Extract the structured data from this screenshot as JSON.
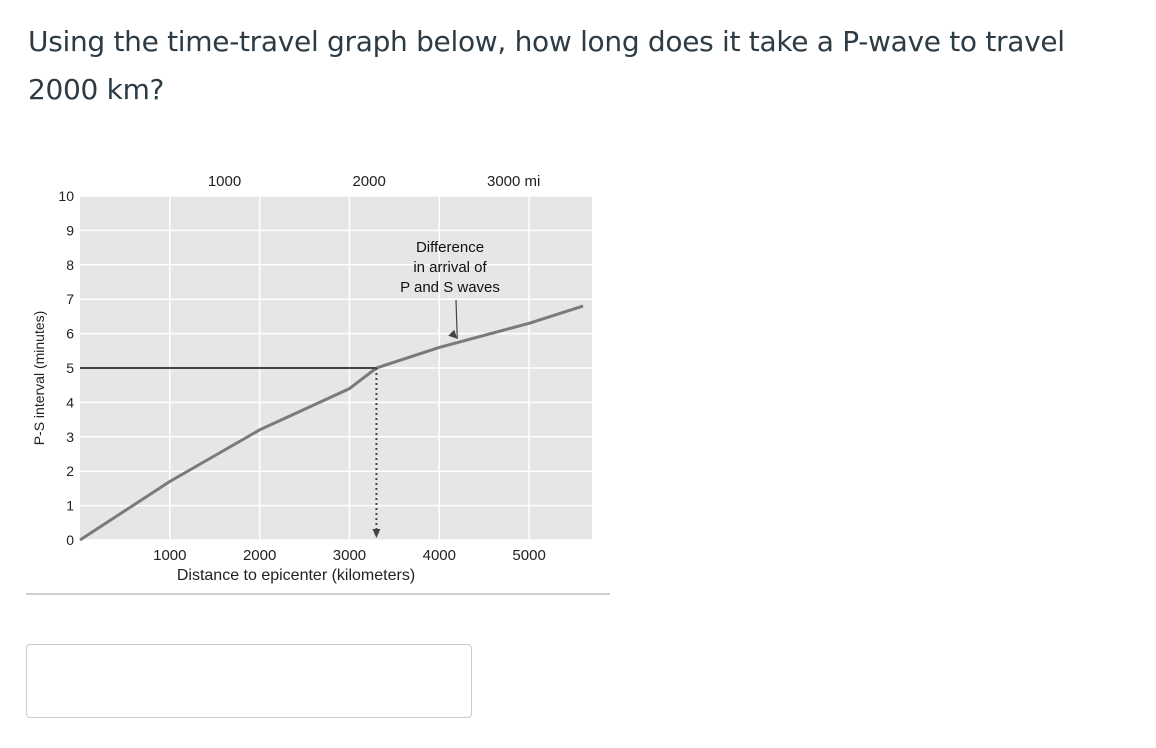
{
  "question": {
    "text": "Using the time-travel graph below, how long does it take a P-wave to travel 2000 km?"
  },
  "answer": {
    "value": "",
    "placeholder": ""
  },
  "colors": {
    "chart_background": "#e6e6e6",
    "grid": "#ffffff",
    "curve": "#7a7a7a",
    "reference_line": "#444444",
    "text": "#2d3b45"
  },
  "chart_data": {
    "type": "line",
    "title": "",
    "xlabel": "Distance to epicenter (kilometers)",
    "ylabel": "P-S interval (minutes)",
    "xlim": [
      0,
      5700
    ],
    "ylim": [
      0,
      10
    ],
    "x_ticks": [
      "1000",
      "2000",
      "3000",
      "4000",
      "5000"
    ],
    "y_ticks": [
      "0",
      "1",
      "2",
      "3",
      "4",
      "5",
      "6",
      "7",
      "8",
      "9",
      "10"
    ],
    "top_axis": {
      "unit": "mi",
      "ticks": [
        "1000",
        "2000",
        "3000 mi"
      ],
      "values_km": [
        1609,
        3219,
        4828
      ]
    },
    "grid": true,
    "series": [
      {
        "x": [
          0,
          1000,
          2000,
          3000,
          3300,
          4000,
          5000,
          5600
        ],
        "y": [
          0,
          1.7,
          3.2,
          4.4,
          5.0,
          5.6,
          6.3,
          6.8
        ]
      }
    ],
    "reference": {
      "y": 5.0,
      "x": 3300,
      "arrow": "down"
    },
    "annotation": {
      "lines": [
        "Difference",
        "in arrival of",
        "P and S waves"
      ],
      "points_to": [
        4200,
        5.85
      ]
    }
  }
}
